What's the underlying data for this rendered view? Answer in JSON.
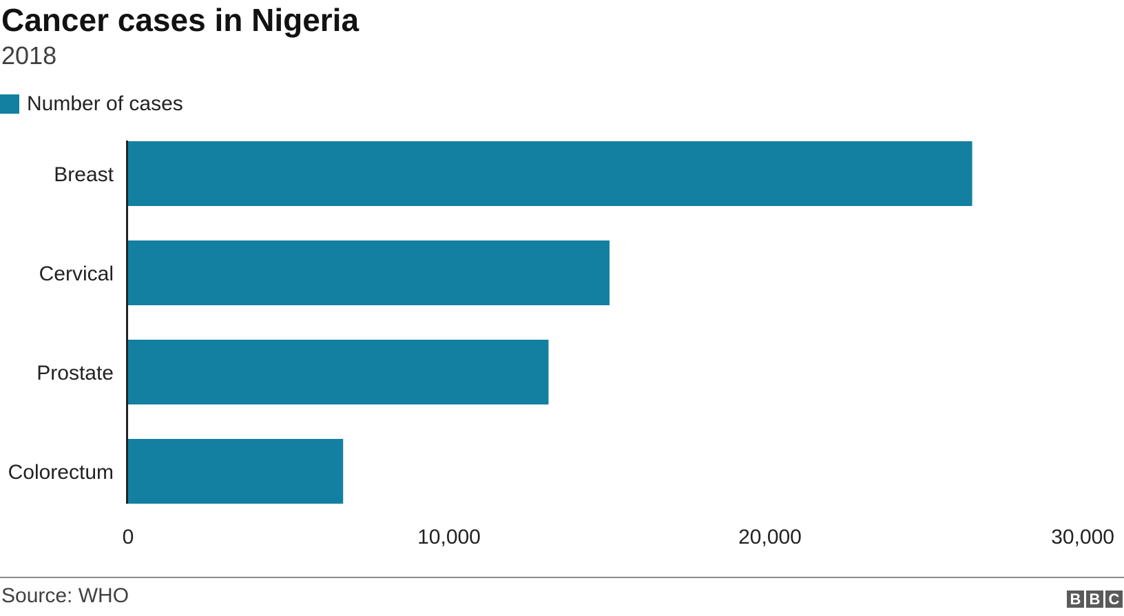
{
  "title": "Cancer cases in Nigeria",
  "subtitle": "2018",
  "legend": {
    "label": "Number of cases",
    "color": "#1380A1"
  },
  "source": "Source: WHO",
  "logo": {
    "letters": [
      "B",
      "B",
      "C"
    ]
  },
  "chart_data": {
    "type": "bar",
    "orientation": "horizontal",
    "title": "Cancer cases in Nigeria",
    "subtitle": "2018",
    "categories": [
      "Breast",
      "Cervical",
      "Prostate",
      "Colorectum"
    ],
    "series": [
      {
        "name": "Number of cases",
        "color": "#1380A1",
        "values": [
          26300,
          15000,
          13100,
          6700
        ]
      }
    ],
    "xlim": [
      0,
      30000
    ],
    "xticks": [
      0,
      10000,
      20000,
      30000
    ],
    "xtick_labels": [
      "0",
      "10,000",
      "20,000",
      "30,000"
    ],
    "grid": false,
    "legend_position": "top-left"
  }
}
